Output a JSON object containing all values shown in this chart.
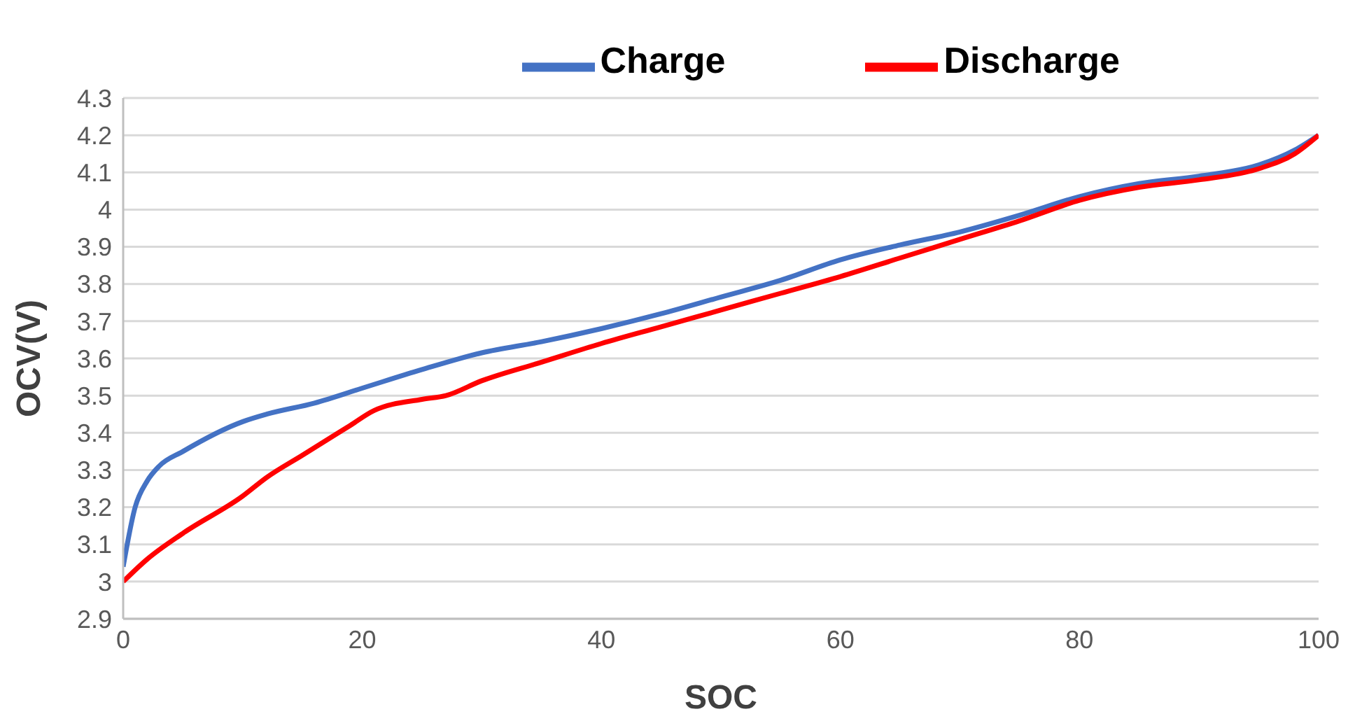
{
  "chart_data": {
    "type": "line",
    "xlabel": "SOC",
    "ylabel": "OCV(V)",
    "xlim": [
      0,
      100
    ],
    "xticks": [
      0,
      20,
      40,
      60,
      80,
      100
    ],
    "ylim": [
      2.9,
      4.3
    ],
    "yticks": [
      2.9,
      3,
      3.1,
      3.2,
      3.3,
      3.4,
      3.5,
      3.6,
      3.7,
      3.8,
      3.9,
      4,
      4.1,
      4.2,
      4.3
    ],
    "grid": "y",
    "legend": "top right",
    "marker": "none",
    "line_style": "solid",
    "series": [
      {
        "name": "Charge",
        "color": "#4472c4",
        "x": [
          0,
          1,
          2,
          3,
          5,
          10,
          12,
          16,
          20,
          25,
          30,
          35,
          40,
          45,
          50,
          55,
          60,
          65,
          70,
          75,
          80,
          85,
          90,
          95,
          98,
          100
        ],
        "values": [
          3.04,
          3.2,
          3.27,
          3.31,
          3.35,
          3.43,
          3.45,
          3.48,
          3.52,
          3.57,
          3.615,
          3.645,
          3.68,
          3.72,
          3.765,
          3.81,
          3.865,
          3.905,
          3.94,
          3.985,
          4.035,
          4.07,
          4.09,
          4.12,
          4.16,
          4.2
        ]
      },
      {
        "name": "Discharge",
        "color": "#ff0000",
        "x": [
          0,
          2,
          5,
          10,
          12,
          15,
          18,
          19,
          21,
          25,
          27,
          30,
          35,
          40,
          45,
          50,
          55,
          60,
          65,
          70,
          75,
          80,
          85,
          90,
          95,
          98,
          100
        ],
        "values": [
          3.0,
          3.06,
          3.13,
          3.23,
          3.28,
          3.34,
          3.4,
          3.42,
          3.46,
          3.49,
          3.5,
          3.54,
          3.59,
          3.64,
          3.685,
          3.73,
          3.775,
          3.82,
          3.87,
          3.92,
          3.97,
          4.025,
          4.06,
          4.08,
          4.11,
          4.15,
          4.2
        ]
      }
    ]
  }
}
